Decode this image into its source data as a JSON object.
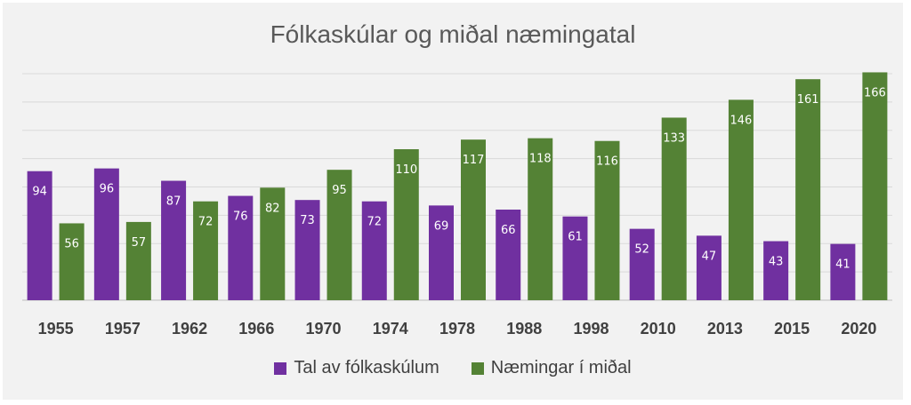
{
  "chart_data": {
    "type": "bar",
    "title": "Fólkaskúlar og miðal næmingatal",
    "categories": [
      "1955",
      "1957",
      "1962",
      "1966",
      "1970",
      "1974",
      "1978",
      "1988",
      "1998",
      "2010",
      "2013",
      "2015",
      "2020"
    ],
    "series": [
      {
        "name": "Tal av fólkaskúlum",
        "color": "#7030a0",
        "values": [
          94,
          96,
          87,
          76,
          73,
          72,
          69,
          66,
          61,
          52,
          47,
          43,
          41
        ]
      },
      {
        "name": "Næmingar í miðal",
        "color": "#548235",
        "values": [
          56,
          57,
          72,
          82,
          95,
          110,
          117,
          118,
          116,
          133,
          146,
          161,
          166
        ]
      }
    ],
    "ylim": [
      0,
      165
    ],
    "grid": true,
    "legend_position": "bottom",
    "data_labels": true
  }
}
